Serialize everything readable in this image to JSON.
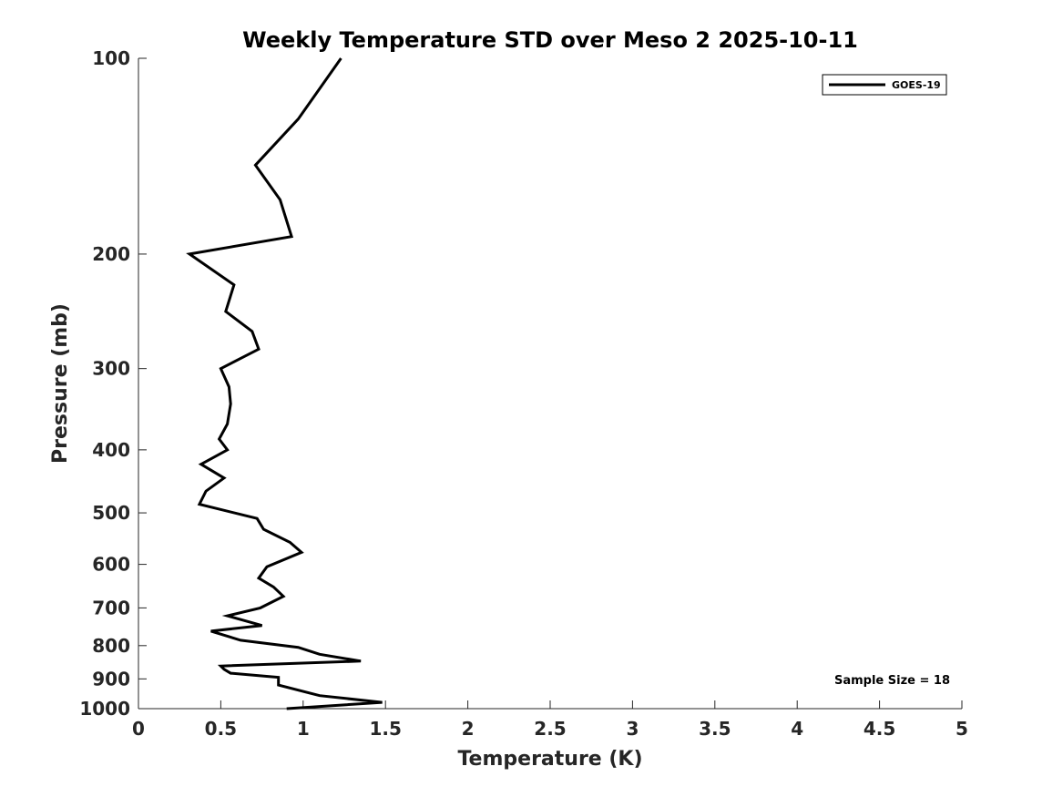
{
  "chart_data": {
    "type": "line",
    "title": "Weekly Temperature STD over Meso 2 2025-10-11",
    "xlabel": "Temperature (K)",
    "ylabel": "Pressure (mb)",
    "xlim": [
      0,
      5
    ],
    "ylim": [
      100,
      1000
    ],
    "y_scale": "log",
    "y_reversed": true,
    "grid": false,
    "legend_position": "top-right",
    "x_ticks": [
      "0",
      "0.5",
      "1",
      "1.5",
      "2",
      "2.5",
      "3",
      "3.5",
      "4",
      "4.5",
      "5"
    ],
    "x_tick_values": [
      0,
      0.5,
      1,
      1.5,
      2,
      2.5,
      3,
      3.5,
      4,
      4.5,
      5
    ],
    "y_ticks": [
      "100",
      "200",
      "300",
      "400",
      "500",
      "600",
      "700",
      "800",
      "900",
      "1000"
    ],
    "y_tick_values": [
      100,
      200,
      300,
      400,
      500,
      600,
      700,
      800,
      900,
      1000
    ],
    "series": [
      {
        "name": "GOES-19",
        "color": "#000000",
        "x": [
          1.23,
          0.97,
          0.71,
          0.86,
          0.93,
          0.31,
          0.58,
          0.53,
          0.69,
          0.73,
          0.5,
          0.55,
          0.56,
          0.54,
          0.49,
          0.54,
          0.38,
          0.52,
          0.41,
          0.37,
          0.72,
          0.76,
          0.92,
          0.99,
          0.78,
          0.73,
          0.82,
          0.88,
          0.74,
          0.54,
          0.75,
          0.44,
          0.62,
          0.97,
          1.1,
          1.35,
          0.5,
          0.52,
          0.56,
          0.85,
          0.85,
          1.1,
          1.48,
          0.9
        ],
        "y": [
          100,
          124,
          146,
          165,
          188,
          200,
          223,
          245,
          263,
          280,
          300,
          320,
          340,
          365,
          385,
          400,
          421,
          442,
          463,
          485,
          510,
          530,
          555,
          575,
          605,
          630,
          650,
          672,
          700,
          720,
          745,
          760,
          785,
          805,
          825,
          845,
          860,
          870,
          882,
          895,
          920,
          955,
          978,
          1000
        ]
      }
    ],
    "annotation": "Sample Size = 18"
  }
}
